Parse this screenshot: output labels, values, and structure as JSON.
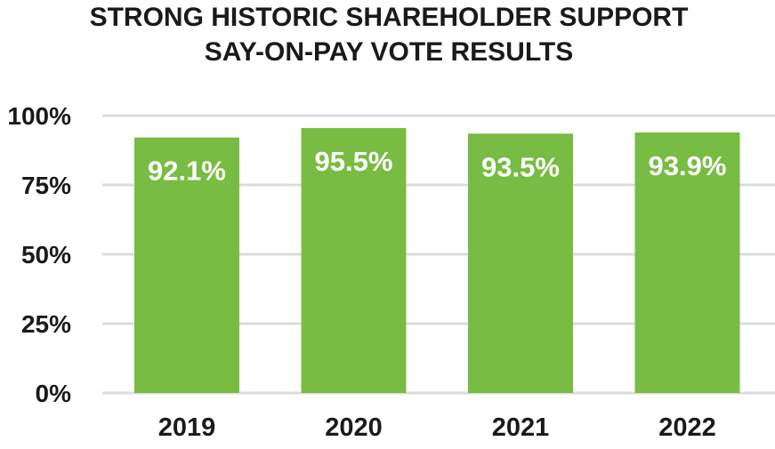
{
  "chart_data": {
    "type": "bar",
    "title": "STRONG HISTORIC SHAREHOLDER SUPPORT",
    "subtitle": "SAY-ON-PAY VOTE RESULTS",
    "categories": [
      "2019",
      "2020",
      "2021",
      "2022"
    ],
    "values": [
      92.1,
      95.5,
      93.5,
      93.9
    ],
    "data_labels": [
      "92.1%",
      "95.5%",
      "93.5%",
      "93.9%"
    ],
    "xlabel": "",
    "ylabel": "",
    "ylim": [
      0,
      100
    ],
    "yticks": [
      0,
      25,
      50,
      75,
      100
    ],
    "ytick_labels": [
      "0%",
      "25%",
      "50%",
      "75%",
      "100%"
    ],
    "grid": true,
    "legend": "none",
    "bar_color": "#79bc43"
  }
}
